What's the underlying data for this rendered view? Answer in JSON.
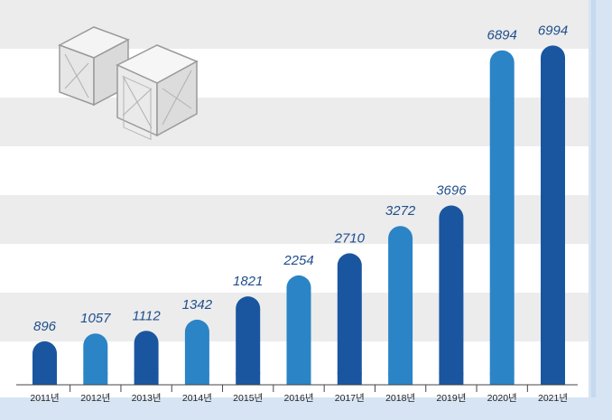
{
  "chart_data": {
    "type": "bar",
    "categories": [
      "2011년",
      "2012년",
      "2013년",
      "2014년",
      "2015년",
      "2016년",
      "2017년",
      "2018년",
      "2019년",
      "2020년",
      "2021년"
    ],
    "values": [
      896,
      1057,
      1112,
      1342,
      1821,
      2254,
      2710,
      3272,
      3696,
      6894,
      6994
    ],
    "title": "",
    "xlabel": "",
    "ylabel": "",
    "ylim": [
      0,
      7000
    ],
    "grid": "horizontal bands",
    "legend": "none"
  },
  "colors": {
    "bar_dark": "#1a56a0",
    "bar_light": "#2b84c6",
    "label": "#1f4e8c",
    "band": "#ececec",
    "frame": "#d6e4f3"
  },
  "icons": {
    "decoration": "boxes-icon"
  }
}
